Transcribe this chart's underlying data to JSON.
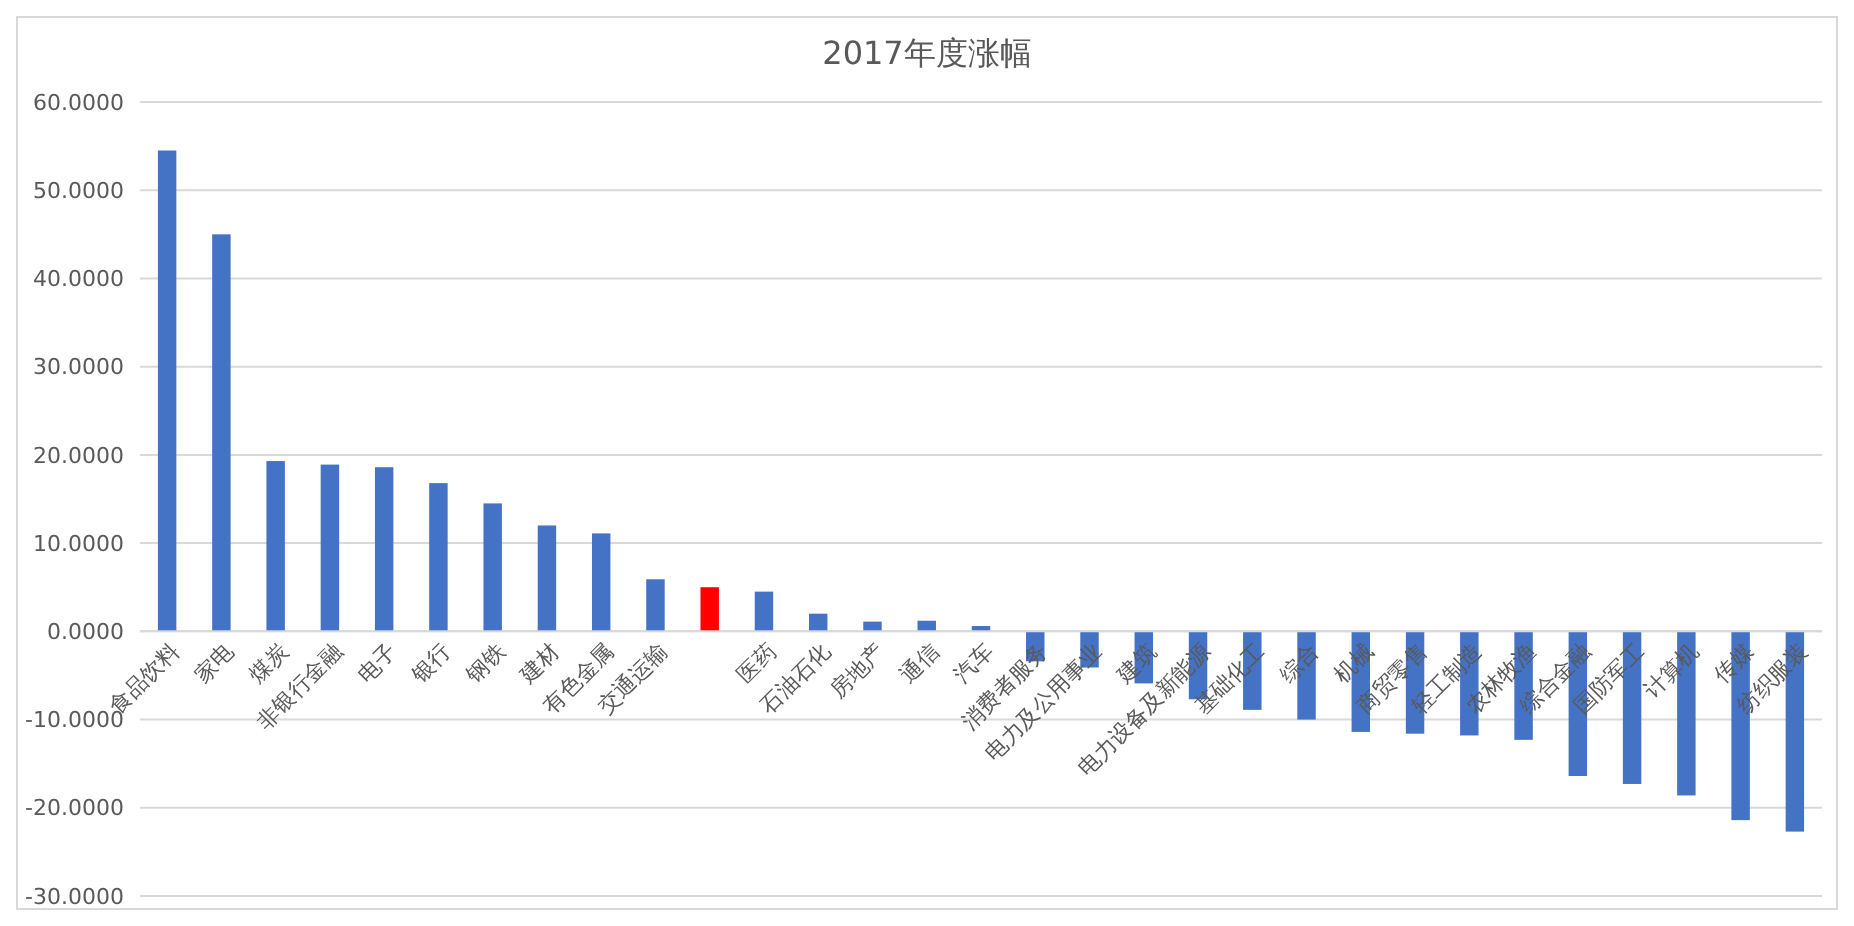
{
  "chart_data": {
    "type": "bar",
    "title": "2017年度涨幅",
    "categories": [
      "食品饮料",
      "家电",
      "煤炭",
      "非银行金融",
      "电子",
      "银行",
      "钢铁",
      "建材",
      "有色金属",
      "交通运输",
      null,
      "医药",
      "石油石化",
      "房地产",
      "通信",
      "汽车",
      "消费者服务",
      "电力及公用事业",
      "建筑",
      "电力设备及新能源",
      "基础化工",
      "综合",
      "机械",
      "商贸零售",
      "轻工制造",
      "农林牧渔",
      "综合金融",
      "国防军工",
      "计算机",
      "传媒",
      "纺织服装"
    ],
    "values": [
      54.5,
      45.0,
      19.3,
      18.9,
      18.6,
      16.8,
      14.5,
      12.0,
      11.1,
      5.9,
      5.0,
      4.5,
      2.0,
      1.1,
      1.2,
      0.6,
      -3.4,
      -4.1,
      -5.9,
      -7.7,
      -8.9,
      -10.0,
      -11.4,
      -11.6,
      -11.8,
      -12.3,
      -16.4,
      -17.3,
      -18.6,
      -21.4,
      -22.7
    ],
    "colors": [
      "#4472c4",
      "#4472c4",
      "#4472c4",
      "#4472c4",
      "#4472c4",
      "#4472c4",
      "#4472c4",
      "#4472c4",
      "#4472c4",
      "#4472c4",
      "#ff0000",
      "#4472c4",
      "#4472c4",
      "#4472c4",
      "#4472c4",
      "#4472c4",
      "#4472c4",
      "#4472c4",
      "#4472c4",
      "#4472c4",
      "#4472c4",
      "#4472c4",
      "#4472c4",
      "#4472c4",
      "#4472c4",
      "#4472c4",
      "#4472c4",
      "#4472c4",
      "#4472c4",
      "#4472c4",
      "#4472c4"
    ],
    "ylim": [
      -30,
      60
    ],
    "yticks": [
      {
        "value": -30,
        "label": "-30.0000"
      },
      {
        "value": -20,
        "label": "-20.0000"
      },
      {
        "value": -10,
        "label": "-10.0000"
      },
      {
        "value": 0,
        "label": "0.0000"
      },
      {
        "value": 10,
        "label": "10.0000"
      },
      {
        "value": 20,
        "label": "20.0000"
      },
      {
        "value": 30,
        "label": "30.0000"
      },
      {
        "value": 40,
        "label": "40.0000"
      },
      {
        "value": 50,
        "label": "50.0000"
      },
      {
        "value": 60,
        "label": "60.0000"
      }
    ],
    "grid": "y"
  }
}
